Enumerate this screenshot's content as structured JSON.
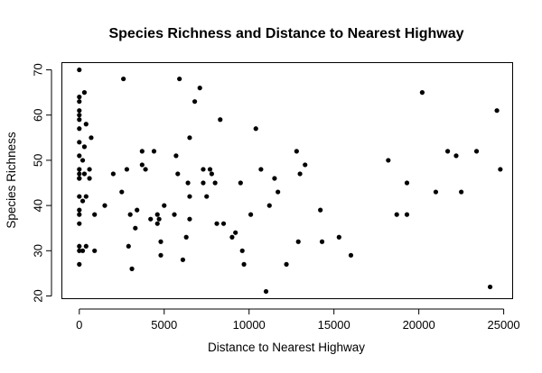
{
  "chart_data": {
    "type": "scatter",
    "title": "Species Richness and Distance to Nearest Highway",
    "xlabel": "Distance to Nearest Highway",
    "ylabel": "Species Richness",
    "xlim": [
      -1000,
      25500
    ],
    "ylim": [
      19.5,
      71.5
    ],
    "xticks": [
      0,
      5000,
      10000,
      15000,
      20000,
      25000
    ],
    "yticks": [
      20,
      30,
      40,
      50,
      60,
      70
    ],
    "xtick_labels": [
      "0",
      "5000",
      "10000",
      "15000",
      "20000",
      "25000"
    ],
    "ytick_labels": [
      "20",
      "30",
      "40",
      "50",
      "60",
      "70"
    ],
    "grid": false,
    "legend": "none",
    "point_color": "#000000",
    "points": [
      [
        0,
        70
      ],
      [
        0,
        64
      ],
      [
        0,
        63
      ],
      [
        0,
        61
      ],
      [
        0,
        60
      ],
      [
        0,
        59
      ],
      [
        0,
        57
      ],
      [
        0,
        54
      ],
      [
        0,
        51
      ],
      [
        0,
        48
      ],
      [
        0,
        47
      ],
      [
        0,
        46
      ],
      [
        0,
        46
      ],
      [
        0,
        42
      ],
      [
        0,
        39
      ],
      [
        0,
        38
      ],
      [
        0,
        36
      ],
      [
        0,
        31
      ],
      [
        0,
        30
      ],
      [
        0,
        27
      ],
      [
        200,
        50
      ],
      [
        200,
        41
      ],
      [
        200,
        30
      ],
      [
        300,
        65
      ],
      [
        300,
        53
      ],
      [
        300,
        47
      ],
      [
        400,
        58
      ],
      [
        400,
        42
      ],
      [
        400,
        31
      ],
      [
        600,
        48
      ],
      [
        600,
        46
      ],
      [
        700,
        55
      ],
      [
        900,
        38
      ],
      [
        900,
        30
      ],
      [
        1500,
        40
      ],
      [
        2000,
        47
      ],
      [
        2500,
        43
      ],
      [
        2600,
        68
      ],
      [
        2800,
        48
      ],
      [
        2900,
        31
      ],
      [
        3000,
        38
      ],
      [
        3100,
        26
      ],
      [
        3300,
        35
      ],
      [
        3400,
        39
      ],
      [
        3700,
        52
      ],
      [
        3700,
        49
      ],
      [
        3900,
        48
      ],
      [
        4200,
        37
      ],
      [
        4400,
        52
      ],
      [
        4600,
        38
      ],
      [
        4600,
        36
      ],
      [
        4700,
        37
      ],
      [
        4800,
        32
      ],
      [
        4800,
        29
      ],
      [
        5000,
        40
      ],
      [
        5600,
        38
      ],
      [
        5700,
        51
      ],
      [
        5800,
        47
      ],
      [
        5900,
        68
      ],
      [
        6100,
        28
      ],
      [
        6300,
        33
      ],
      [
        6400,
        45
      ],
      [
        6500,
        55
      ],
      [
        6500,
        42
      ],
      [
        6500,
        37
      ],
      [
        6800,
        63
      ],
      [
        7100,
        66
      ],
      [
        7300,
        48
      ],
      [
        7300,
        45
      ],
      [
        7500,
        42
      ],
      [
        7700,
        48
      ],
      [
        7800,
        47
      ],
      [
        8000,
        45
      ],
      [
        8100,
        36
      ],
      [
        8300,
        59
      ],
      [
        8500,
        36
      ],
      [
        9000,
        33
      ],
      [
        9200,
        34
      ],
      [
        9500,
        45
      ],
      [
        9600,
        30
      ],
      [
        9700,
        27
      ],
      [
        10100,
        38
      ],
      [
        10400,
        57
      ],
      [
        10700,
        48
      ],
      [
        11000,
        21
      ],
      [
        11200,
        40
      ],
      [
        11500,
        46
      ],
      [
        11700,
        43
      ],
      [
        12200,
        27
      ],
      [
        12800,
        52
      ],
      [
        12900,
        32
      ],
      [
        13000,
        47
      ],
      [
        13300,
        49
      ],
      [
        14200,
        39
      ],
      [
        14300,
        32
      ],
      [
        15300,
        33
      ],
      [
        16000,
        29
      ],
      [
        18200,
        50
      ],
      [
        18700,
        38
      ],
      [
        19300,
        45
      ],
      [
        19300,
        38
      ],
      [
        20200,
        65
      ],
      [
        21000,
        43
      ],
      [
        21700,
        52
      ],
      [
        22200,
        51
      ],
      [
        22500,
        43
      ],
      [
        23400,
        52
      ],
      [
        24200,
        22
      ],
      [
        24600,
        61
      ],
      [
        24800,
        48
      ]
    ]
  }
}
